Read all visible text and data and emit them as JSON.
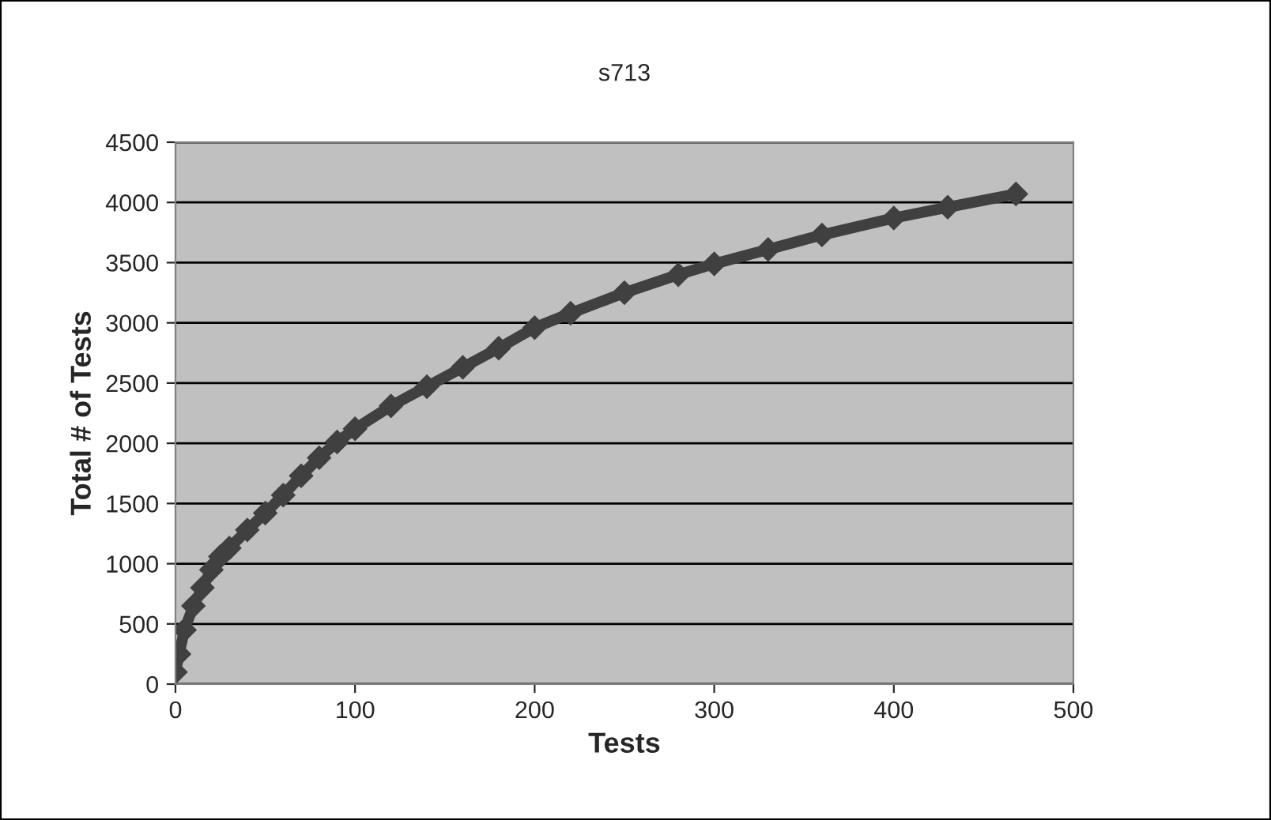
{
  "chart_data": {
    "type": "line",
    "title": "s713",
    "xlabel": "Tests",
    "ylabel": "Total # of Tests",
    "series": [
      {
        "color": "#404040",
        "x": [
          0,
          2,
          5,
          10,
          15,
          20,
          25,
          30,
          40,
          50,
          60,
          70,
          80,
          90,
          100,
          120,
          140,
          160,
          180,
          200,
          220,
          250,
          280,
          300,
          330,
          360,
          400,
          430,
          468
        ],
        "values": [
          100,
          250,
          450,
          650,
          800,
          950,
          1060,
          1130,
          1280,
          1420,
          1570,
          1730,
          1880,
          2010,
          2120,
          2310,
          2470,
          2630,
          2790,
          2960,
          3080,
          3250,
          3400,
          3490,
          3610,
          3730,
          3870,
          3960,
          4070
        ]
      }
    ],
    "xlim": [
      0,
      500
    ],
    "xticks": [
      0,
      100,
      200,
      300,
      400,
      500
    ],
    "ylim": [
      0,
      4500
    ],
    "yticks": [
      0,
      500,
      1000,
      1500,
      2000,
      2500,
      3000,
      3500,
      4000,
      4500
    ],
    "grid": "y",
    "marker": "diamond",
    "line_style": "solid",
    "legend": false
  }
}
